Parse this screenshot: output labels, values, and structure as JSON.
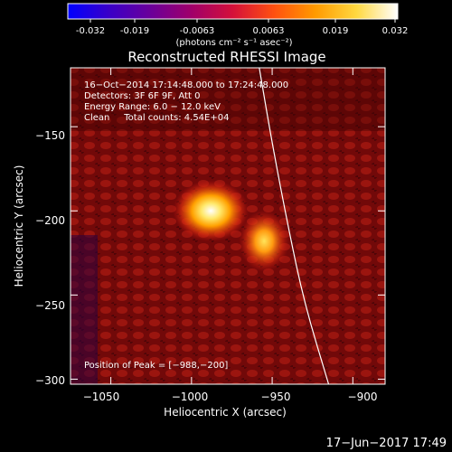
{
  "colorbar": {
    "ticks": [
      "-0.032",
      "-0.019",
      "-0.0063",
      "0.0063",
      "0.019",
      "0.032"
    ],
    "unit_label": "(photons cm⁻² s⁻¹ asec⁻²)",
    "colors": [
      "#0000ff",
      "#3a00c8",
      "#6a009a",
      "#a0006a",
      "#d4103a",
      "#ff5010",
      "#ff9a00",
      "#ffd840",
      "#ffffff"
    ]
  },
  "chart_data": {
    "type": "heatmap",
    "title": "Reconstructed RHESSI Image",
    "xlabel": "Heliocentric X (arcsec)",
    "ylabel": "Heliocentric Y (arcsec)",
    "xlim": [
      -1075,
      -880
    ],
    "ylim": [
      -303,
      -115
    ],
    "x_ticks": [
      -1050,
      -1000,
      -950,
      -900
    ],
    "y_ticks": [
      -150,
      -200,
      -250,
      -300
    ],
    "x_tick_labels": [
      "−1050",
      "−1000",
      "−950",
      "−900"
    ],
    "y_tick_labels": [
      "−150",
      "−200",
      "−250",
      "−300"
    ],
    "sources": [
      {
        "x": -988,
        "y": -200,
        "intensity": 0.032
      },
      {
        "x": -955,
        "y": -218,
        "intensity": 0.024
      }
    ],
    "limb_curve": [
      [
        -958,
        -115
      ],
      [
        -950,
        -160
      ],
      [
        -940,
        -210
      ],
      [
        -930,
        -255
      ],
      [
        -915,
        -303
      ]
    ]
  },
  "annotations": {
    "line1": "16−Oct−2014 17:14:48.000 to 17:24:48.000",
    "line2": "Detectors: 3F 6F 9F, Att 0",
    "line3": "Energy Range: 6.0 − 12.0 keV",
    "line4": "Clean     Total counts: 4.54E+04",
    "peak": "Position of Peak = [−988,−200]"
  },
  "timestamp": "17−Jun−2017 17:49"
}
